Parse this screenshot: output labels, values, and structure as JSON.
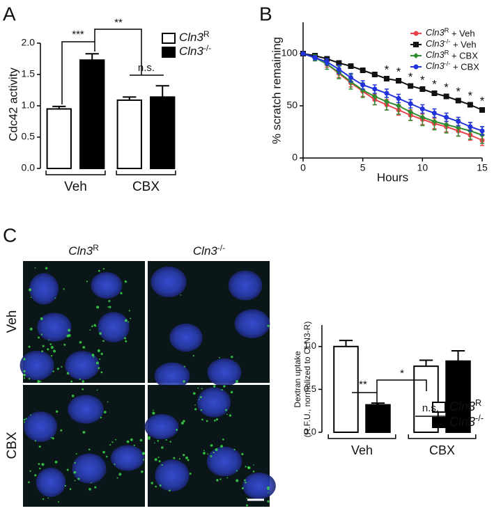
{
  "panel_labels": [
    "A",
    "B",
    "C"
  ],
  "micrograph": {
    "column_labels": [
      "Cln3R",
      "Cln3-/-"
    ],
    "row_labels": [
      "Veh",
      "CBX"
    ]
  },
  "chart_data": [
    {
      "type": "bar",
      "ylabel": "Cdc42 activity",
      "categories": [
        "Veh",
        "CBX"
      ],
      "series": [
        {
          "name": "Cln3R",
          "color": "#ffffff",
          "values": [
            0.95,
            1.09
          ],
          "errors": [
            0.04,
            0.05
          ]
        },
        {
          "name": "Cln3-/-",
          "color": "#000000",
          "values": [
            1.73,
            1.14
          ],
          "errors": [
            0.1,
            0.18
          ]
        }
      ],
      "ylim": [
        0,
        2.0
      ],
      "yticks": [
        {
          "value": 0,
          "label": "0.0"
        },
        {
          "value": 0.5,
          "label": "0.5"
        },
        {
          "value": 1,
          "label": "1.0"
        },
        {
          "value": 1.5,
          "label": "1.5"
        },
        {
          "value": 2,
          "label": "2.0"
        }
      ],
      "legend": "upper right",
      "annotations": [
        "***",
        "**",
        "n.s."
      ]
    },
    {
      "type": "line",
      "xlabel": "Hours",
      "ylabel": "% scratch remaining",
      "x": [
        0,
        1,
        2,
        3,
        4,
        5,
        6,
        7,
        8,
        9,
        10,
        11,
        12,
        13,
        14,
        15
      ],
      "series": [
        {
          "name": "Cln3R + Veh",
          "color": "#e8434a",
          "values": [
            100,
            97,
            90,
            81,
            72,
            64,
            56,
            51,
            46,
            41,
            37,
            33,
            30,
            26,
            22,
            17
          ],
          "errors": [
            0,
            2,
            3,
            4,
            4,
            5,
            5,
            5,
            5,
            5,
            5,
            5,
            5,
            5,
            5,
            5
          ]
        },
        {
          "name": "Cln3-/- + Veh",
          "color": "#111111",
          "values": [
            100,
            98,
            95,
            91,
            88,
            84,
            80,
            76,
            74,
            69,
            66,
            62,
            59,
            55,
            51,
            46
          ],
          "errors": [
            0,
            1,
            1,
            2,
            2,
            2,
            2,
            2,
            2,
            2,
            2,
            2,
            2,
            2,
            2,
            2
          ]
        },
        {
          "name": "Cln3R + CBX",
          "color": "#2e8b2e",
          "values": [
            100,
            96,
            90,
            82,
            73,
            65,
            59,
            54,
            50,
            44,
            39,
            35,
            32,
            29,
            26,
            22
          ],
          "errors": [
            0,
            3,
            5,
            6,
            7,
            7,
            8,
            8,
            8,
            8,
            8,
            8,
            8,
            8,
            8,
            8
          ]
        },
        {
          "name": "Cln3-/- + CBX",
          "color": "#2233dd",
          "values": [
            100,
            96,
            92,
            85,
            77,
            70,
            66,
            62,
            57,
            52,
            47,
            43,
            39,
            35,
            30,
            26
          ],
          "errors": [
            0,
            2,
            3,
            4,
            4,
            4,
            4,
            4,
            4,
            4,
            4,
            4,
            4,
            4,
            4,
            4
          ]
        }
      ],
      "xlim": [
        0,
        15
      ],
      "xticks": [
        0,
        5,
        10,
        15
      ],
      "ylim": [
        0,
        130
      ],
      "yticks": [
        0,
        50,
        100
      ],
      "legend": "upper right",
      "annotations": [
        {
          "text": "*",
          "x": 7
        },
        {
          "text": "*",
          "x": 8
        },
        {
          "text": "*",
          "x": 9
        },
        {
          "text": "*",
          "x": 10
        },
        {
          "text": "*",
          "x": 11
        },
        {
          "text": "*",
          "x": 12
        },
        {
          "text": "*",
          "x": 13
        },
        {
          "text": "*",
          "x": 14
        },
        {
          "text": "*",
          "x": 15
        }
      ]
    },
    {
      "type": "bar",
      "ylabel": [
        "Dextran uptake",
        "(R.F.U., normalized to CLN3-R)"
      ],
      "categories": [
        "Veh",
        "CBX"
      ],
      "series": [
        {
          "name": "Cln3R",
          "color": "#ffffff",
          "values": [
            1.0,
            0.77
          ],
          "errors": [
            0.07,
            0.07
          ]
        },
        {
          "name": "Cln3-/-",
          "color": "#000000",
          "values": [
            0.32,
            0.83
          ],
          "errors": [
            0.02,
            0.12
          ]
        }
      ],
      "ylim": [
        0,
        1.25
      ],
      "yticks": [
        {
          "value": 0,
          "label": "0.0"
        },
        {
          "value": 0.5,
          "label": "0.5"
        },
        {
          "value": 1,
          "label": "1.0"
        }
      ],
      "legend": "upper right",
      "annotations": [
        "**",
        "*",
        "n.s."
      ]
    }
  ]
}
